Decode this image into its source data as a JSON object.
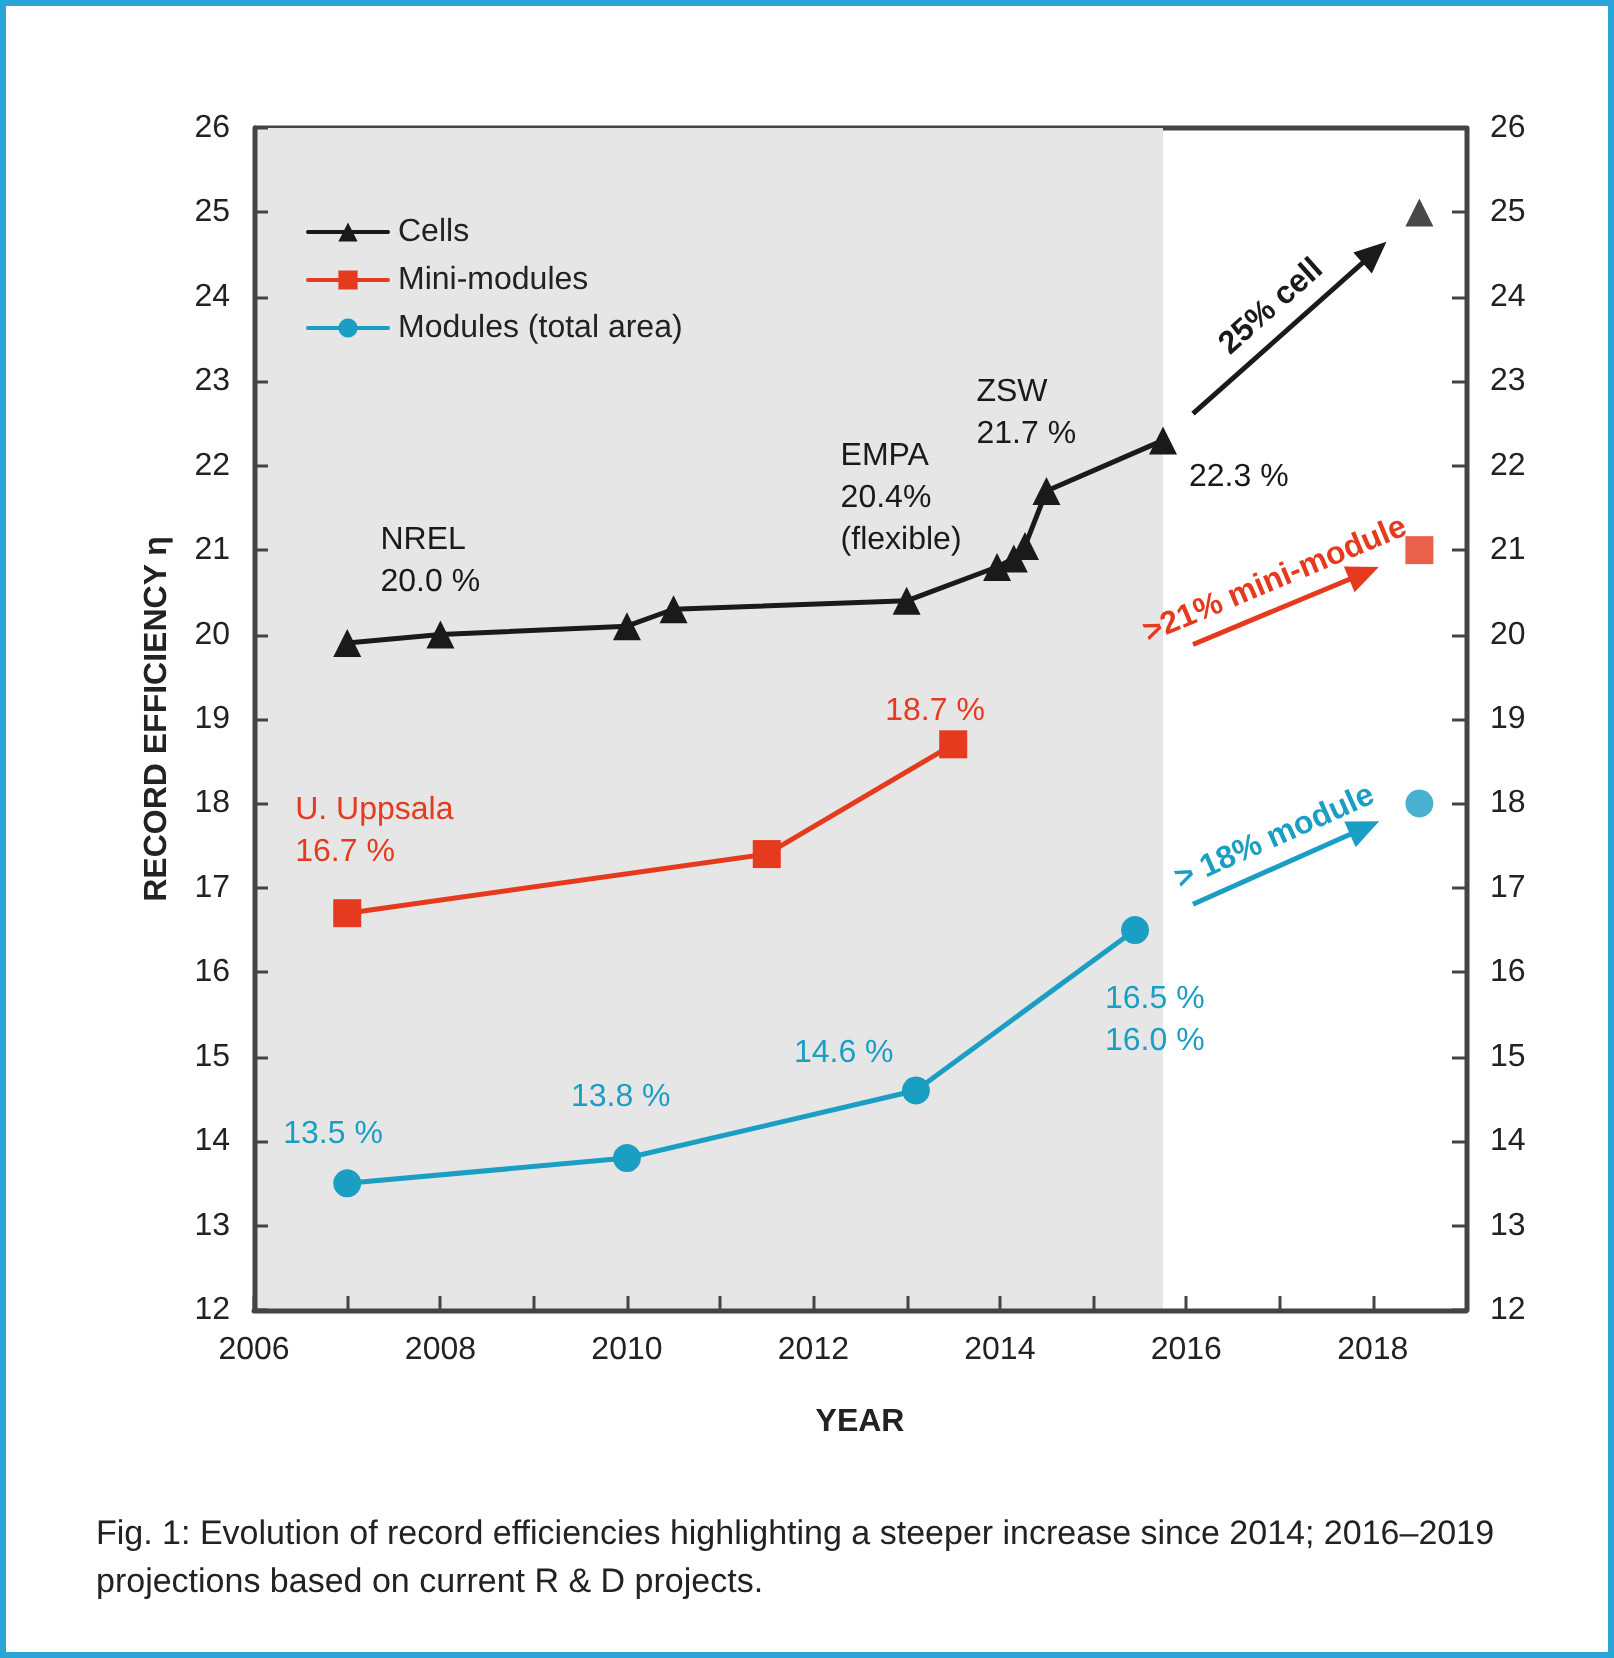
{
  "chart_data": {
    "type": "line",
    "xlabel": "YEAR",
    "ylabel": "RECORD EFFICIENCY η",
    "xlim": [
      2006,
      2019
    ],
    "xticks": [
      2006,
      {
        "value": 2007,
        "label": null
      },
      2008,
      {
        "value": 2009,
        "label": null
      },
      2010,
      {
        "value": 2011,
        "label": null
      },
      2012,
      {
        "value": 2013,
        "label": null
      },
      2014,
      {
        "value": 2015,
        "label": null
      },
      2016,
      {
        "value": 2017,
        "label": null
      },
      2018
    ],
    "ylim": [
      12,
      26
    ],
    "yticks": [
      12,
      13,
      14,
      15,
      16,
      17,
      18,
      19,
      20,
      21,
      22,
      23,
      24,
      25,
      26
    ],
    "y2lim": [
      12,
      26
    ],
    "y2ticks": [
      12,
      13,
      14,
      15,
      16,
      17,
      18,
      19,
      20,
      21,
      22,
      23,
      24,
      25,
      26
    ],
    "grid": false,
    "legend": "top left",
    "line_style": "solid",
    "bands": [
      {
        "axis": "x",
        "from": 2006,
        "to": 2015.75,
        "color": "#e6e6e6"
      }
    ],
    "series": [
      {
        "name": "Cells",
        "color": "#1a1a1a",
        "marker": "triangle",
        "x": [
          2007.0,
          2008.0,
          2010.0,
          2010.5,
          2013.0,
          2013.97,
          2014.15,
          2014.27,
          2014.5,
          2015.75
        ],
        "values": [
          19.9,
          20.0,
          20.1,
          20.3,
          20.4,
          20.8,
          20.9,
          21.05,
          21.7,
          22.3
        ]
      },
      {
        "name": "Mini-modules",
        "color": "#e53a1e",
        "marker": "square",
        "x": [
          2007.0,
          2011.5,
          2013.5
        ],
        "values": [
          16.7,
          17.4,
          18.7
        ]
      },
      {
        "name": "Modules (total area)",
        "color": "#1b9ec4",
        "marker": "circle",
        "x": [
          2007.0,
          2010.0,
          2013.1,
          2015.45
        ],
        "values": [
          13.5,
          13.8,
          14.6,
          16.5
        ]
      },
      {
        "type": "scatter",
        "color": "#1a1a1a",
        "marker": "triangle",
        "x": [
          2018.5
        ],
        "values": [
          25.0
        ]
      },
      {
        "type": "scatter",
        "color": "#e53a1e",
        "marker": "square",
        "x": [
          2018.5
        ],
        "values": [
          21.0
        ]
      },
      {
        "type": "scatter",
        "color": "#1b9ec4",
        "marker": "circle",
        "x": [
          2018.5
        ],
        "values": [
          18.0
        ]
      }
    ],
    "annotations": [
      {
        "text": "NREL\n20.0 %",
        "x": 2008.0,
        "y": 20.0
      },
      {
        "text": "EMPA\n20.4%\n(flexible)",
        "x": 2013.0,
        "y": 20.4
      },
      {
        "text": "ZSW\n21.7 %",
        "x": 2014.5,
        "y": 21.7
      },
      {
        "text": "22.3 %",
        "x": 2015.75,
        "y": 22.3
      },
      {
        "text": "U. Uppsala\n16.7 %",
        "x": 2007.0,
        "y": 16.7
      },
      {
        "text": "18.7 %",
        "x": 2013.5,
        "y": 18.7
      },
      {
        "text": "13.5 %",
        "x": 2007.0,
        "y": 13.5
      },
      {
        "text": "13.8 %",
        "x": 2010.0,
        "y": 13.8
      },
      {
        "text": "14.6 %",
        "x": 2013.1,
        "y": 14.6
      },
      {
        "text": "16.5 %\n16.0 %",
        "x": 2015.45,
        "y": 16.5
      },
      "25% cell",
      ">21% mini-module",
      "> 18% module",
      "Fig. 1: Evolution of record efficiencies highlighting a steeper increase since 2014; 2016–2019 projections based on current R & D projects."
    ]
  }
}
